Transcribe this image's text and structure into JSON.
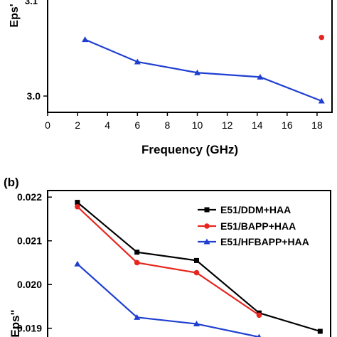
{
  "colors": {
    "black": "#000000",
    "red": "#e6261f",
    "blue": "#1f3fd1"
  },
  "chart_data": [
    {
      "type": "line",
      "xlabel": "Frequency (GHz)",
      "ylabel": "Eps'",
      "xlim": [
        0,
        19
      ],
      "ylim": [
        2.85,
        3.95
      ],
      "xticks": [
        0,
        2,
        4,
        6,
        8,
        10,
        12,
        14,
        16,
        18
      ],
      "yticks": [
        3.0
      ],
      "ytick_labels": [
        "3.0"
      ],
      "top_tick_label": "3.1",
      "series": [
        {
          "color": "#1f3fd1",
          "marker": "triangle",
          "x": [
            2.5,
            6,
            10,
            14.2,
            18.3
          ],
          "y": [
            3.52,
            3.315,
            3.215,
            3.175,
            2.955
          ]
        },
        {
          "color": "#e6261f",
          "marker": "circle",
          "x": [
            18.3
          ],
          "y": [
            3.54
          ]
        }
      ]
    },
    {
      "panel_label": "(b)",
      "type": "line",
      "xlabel": "",
      "ylabel": "Eps\"",
      "xlim": [
        0,
        19
      ],
      "ylim": [
        0.0188,
        0.02215
      ],
      "yticks": [
        0.019,
        0.02,
        0.021,
        0.022
      ],
      "ytick_labels": [
        "0.019",
        "0.020",
        "0.021",
        "0.022"
      ],
      "series": [
        {
          "name": "E51/DDM+HAA",
          "color": "#000000",
          "marker": "square",
          "x": [
            2,
            6,
            10,
            14.2,
            18.3
          ],
          "y": [
            0.02188,
            0.02074,
            0.02055,
            0.01935,
            0.01893
          ]
        },
        {
          "name": "E51/BAPP+HAA",
          "color": "#e6261f",
          "marker": "circle",
          "x": [
            2,
            6,
            10,
            14.2
          ],
          "y": [
            0.02178,
            0.0205,
            0.02027,
            0.0193
          ]
        },
        {
          "name": "E51/HFBAPP+HAA",
          "color": "#1f3fd1",
          "marker": "triangle",
          "x": [
            2,
            6,
            10,
            14.2
          ],
          "y": [
            0.02047,
            0.01925,
            0.0191,
            0.0188
          ]
        }
      ]
    }
  ]
}
